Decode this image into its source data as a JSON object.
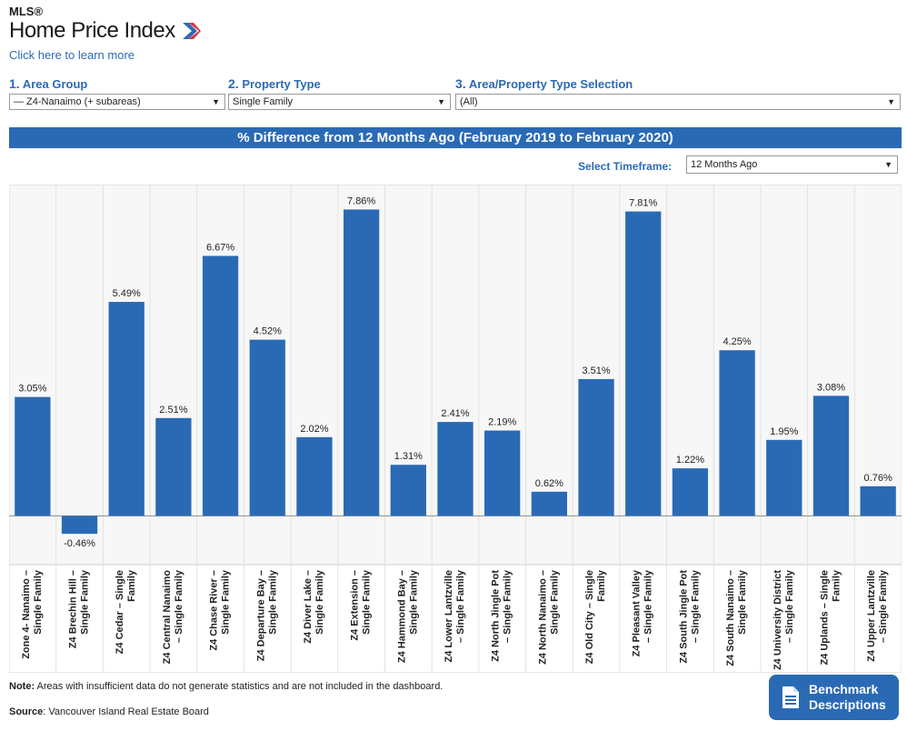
{
  "header": {
    "logo_top": "MLS®",
    "logo_main": "Home Price Index",
    "learn_more": "Click here to learn more"
  },
  "selectors": [
    {
      "num": "1.",
      "label": "Area Group",
      "value": "— Z4-Nanaimo (+ subareas)"
    },
    {
      "num": "2.",
      "label": "Property Type",
      "value": "Single Family"
    },
    {
      "num": "3.",
      "label": "Area/Property Type Selection",
      "value": "(All)"
    }
  ],
  "banner_title": "% Difference from 12 Months Ago (February 2019 to February 2020)",
  "timeframe": {
    "label": "Select Timeframe:",
    "value": "12 Months Ago"
  },
  "colors": {
    "accent": "#2a6ab5",
    "bar": "#2a6ab5",
    "logo_red": "#d22b3b",
    "logo_blue": "#2a6ab5"
  },
  "chart_data": {
    "type": "bar",
    "categories": [
      "Zone 4- Nanaimo – Single Family",
      "Z4 Brechin Hill – Single Family",
      "Z4 Cedar – Single Family",
      "Z4 Central Nanaimo – Single Family",
      "Z4 Chase River – Single Family",
      "Z4 Departure Bay – Single Family",
      "Z4 Diver Lake – Single Family",
      "Z4 Extension – Single Family",
      "Z4 Hammond Bay – Single Family",
      "Z4 Lower Lantzville – Single Family",
      "Z4 North Jingle Pot – Single Family",
      "Z4 North Nanaimo – Single Family",
      "Z4 Old City – Single Family",
      "Z4 Pleasant Valley – Single Family",
      "Z4 South Jingle Pot – Single Family",
      "Z4 South Nanaimo – Single Family",
      "Z4 University District – Single Family",
      "Z4 Uplands – Single Family",
      "Z4 Upper Lantzville – Single Family"
    ],
    "values": [
      3.05,
      -0.46,
      5.49,
      2.51,
      6.67,
      4.52,
      2.02,
      7.86,
      1.31,
      2.41,
      2.19,
      0.62,
      3.51,
      7.81,
      1.22,
      4.25,
      1.95,
      3.08,
      0.76
    ],
    "labels": [
      "3.05%",
      "-0.46%",
      "5.49%",
      "2.51%",
      "6.67%",
      "4.52%",
      "2.02%",
      "7.86%",
      "1.31%",
      "2.41%",
      "2.19%",
      "0.62%",
      "3.51%",
      "7.81%",
      "1.22%",
      "4.25%",
      "1.95%",
      "3.08%",
      "0.76%"
    ],
    "ylim": [
      -1.25,
      8.5
    ],
    "grid": false,
    "legend": "none"
  },
  "footer": {
    "note_bold": "Note:",
    "note_text": " Areas with insufficient data do not generate statistics and are not included in the dashboard.",
    "source_bold": "Source",
    "source_text": ": Vancouver Island Real Estate Board",
    "bench_line1": "Benchmark",
    "bench_line2": "Descriptions"
  }
}
